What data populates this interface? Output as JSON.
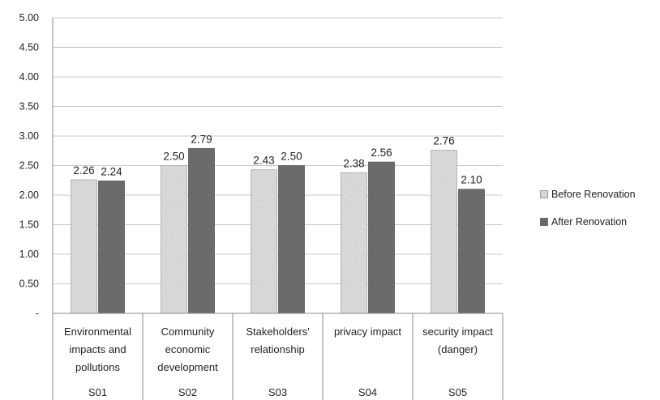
{
  "chart_data": {
    "type": "bar",
    "title": "",
    "xlabel": "",
    "ylabel": "",
    "ylim": [
      0,
      5
    ],
    "yticks": [
      "-",
      "0.50",
      "1.00",
      "1.50",
      "2.00",
      "2.50",
      "3.00",
      "3.50",
      "4.00",
      "4.50",
      "5.00"
    ],
    "grid": true,
    "legend_position": "right",
    "categories": [
      {
        "label_lines": [
          "Environmental",
          "impacts and",
          "pollutions"
        ],
        "code": "S01"
      },
      {
        "label_lines": [
          "Community",
          "economic",
          "development"
        ],
        "code": "S02"
      },
      {
        "label_lines": [
          "Stakeholders'",
          "relationship"
        ],
        "code": "S03"
      },
      {
        "label_lines": [
          "privacy impact"
        ],
        "code": "S04"
      },
      {
        "label_lines": [
          "security impact",
          "(danger)"
        ],
        "code": "S05"
      }
    ],
    "series": [
      {
        "name": "Before Renovation",
        "values": [
          2.26,
          2.5,
          2.43,
          2.38,
          2.76
        ],
        "labels": [
          "2.26",
          "2.50",
          "2.43",
          "2.38",
          "2.76"
        ],
        "color": "#dcdcdc"
      },
      {
        "name": "After Renovation",
        "values": [
          2.24,
          2.79,
          2.5,
          2.56,
          2.1
        ],
        "labels": [
          "2.24",
          "2.79",
          "2.50",
          "2.56",
          "2.10"
        ],
        "color": "#6b6b6b"
      }
    ]
  }
}
